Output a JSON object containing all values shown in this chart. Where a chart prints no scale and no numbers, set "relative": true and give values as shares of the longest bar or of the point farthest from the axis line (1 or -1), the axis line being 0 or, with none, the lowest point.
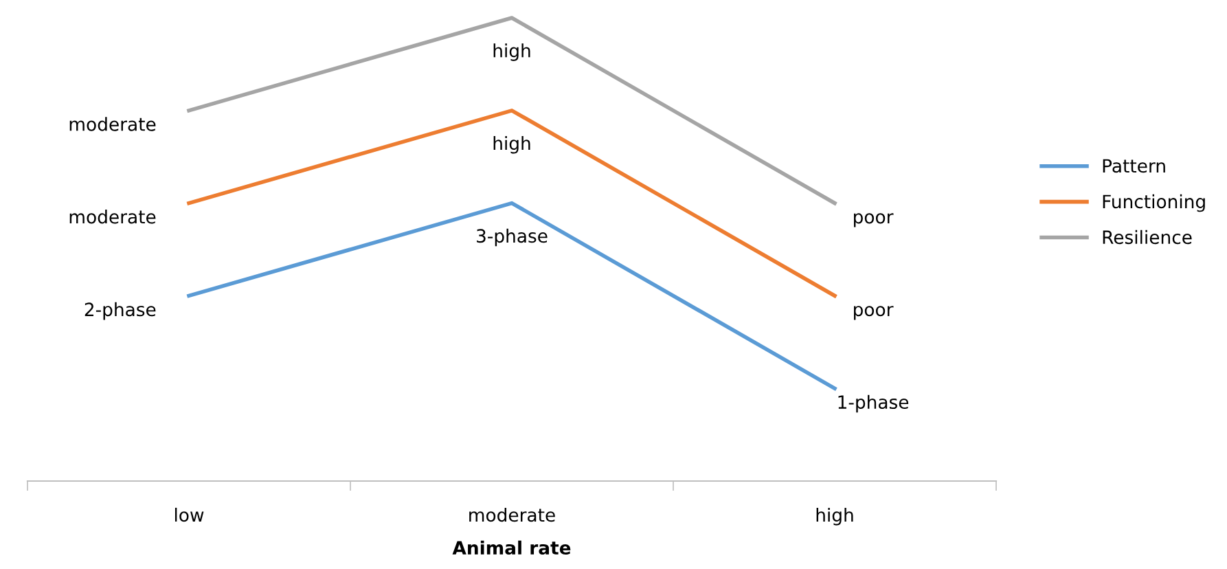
{
  "chart_data": {
    "type": "line",
    "relative": true,
    "xlabel": "Animal rate",
    "categories": [
      "low",
      "moderate",
      "high"
    ],
    "series": [
      {
        "name": "Pattern",
        "color": "#5b9bd5",
        "values": [
          0.4,
          0.6,
          0.2
        ]
      },
      {
        "name": "Functioning",
        "color": "#ed7d31",
        "values": [
          0.6,
          0.8,
          0.4
        ]
      },
      {
        "name": "Resilience",
        "color": "#a5a5a5",
        "values": [
          0.8,
          1.0,
          0.6
        ]
      }
    ],
    "annotations": [
      {
        "text": "2-phase",
        "x": "low",
        "y": 0.4
      },
      {
        "text": "3-phase",
        "x": "moderate",
        "y": 0.6
      },
      {
        "text": "1-phase",
        "x": "high",
        "y": 0.2
      },
      {
        "text": "moderate",
        "x": "low",
        "y": 0.6
      },
      {
        "text": "high",
        "x": "moderate",
        "y": 0.8
      },
      {
        "text": "poor",
        "x": "high",
        "y": 0.4
      },
      {
        "text": "moderate",
        "x": "low",
        "y": 0.8
      },
      {
        "text": "high",
        "x": "moderate",
        "y": 1.0
      },
      {
        "text": "poor",
        "x": "high",
        "y": 0.6
      }
    ],
    "legend": "right",
    "grid": false,
    "marker": "none",
    "line_style": "solid"
  }
}
